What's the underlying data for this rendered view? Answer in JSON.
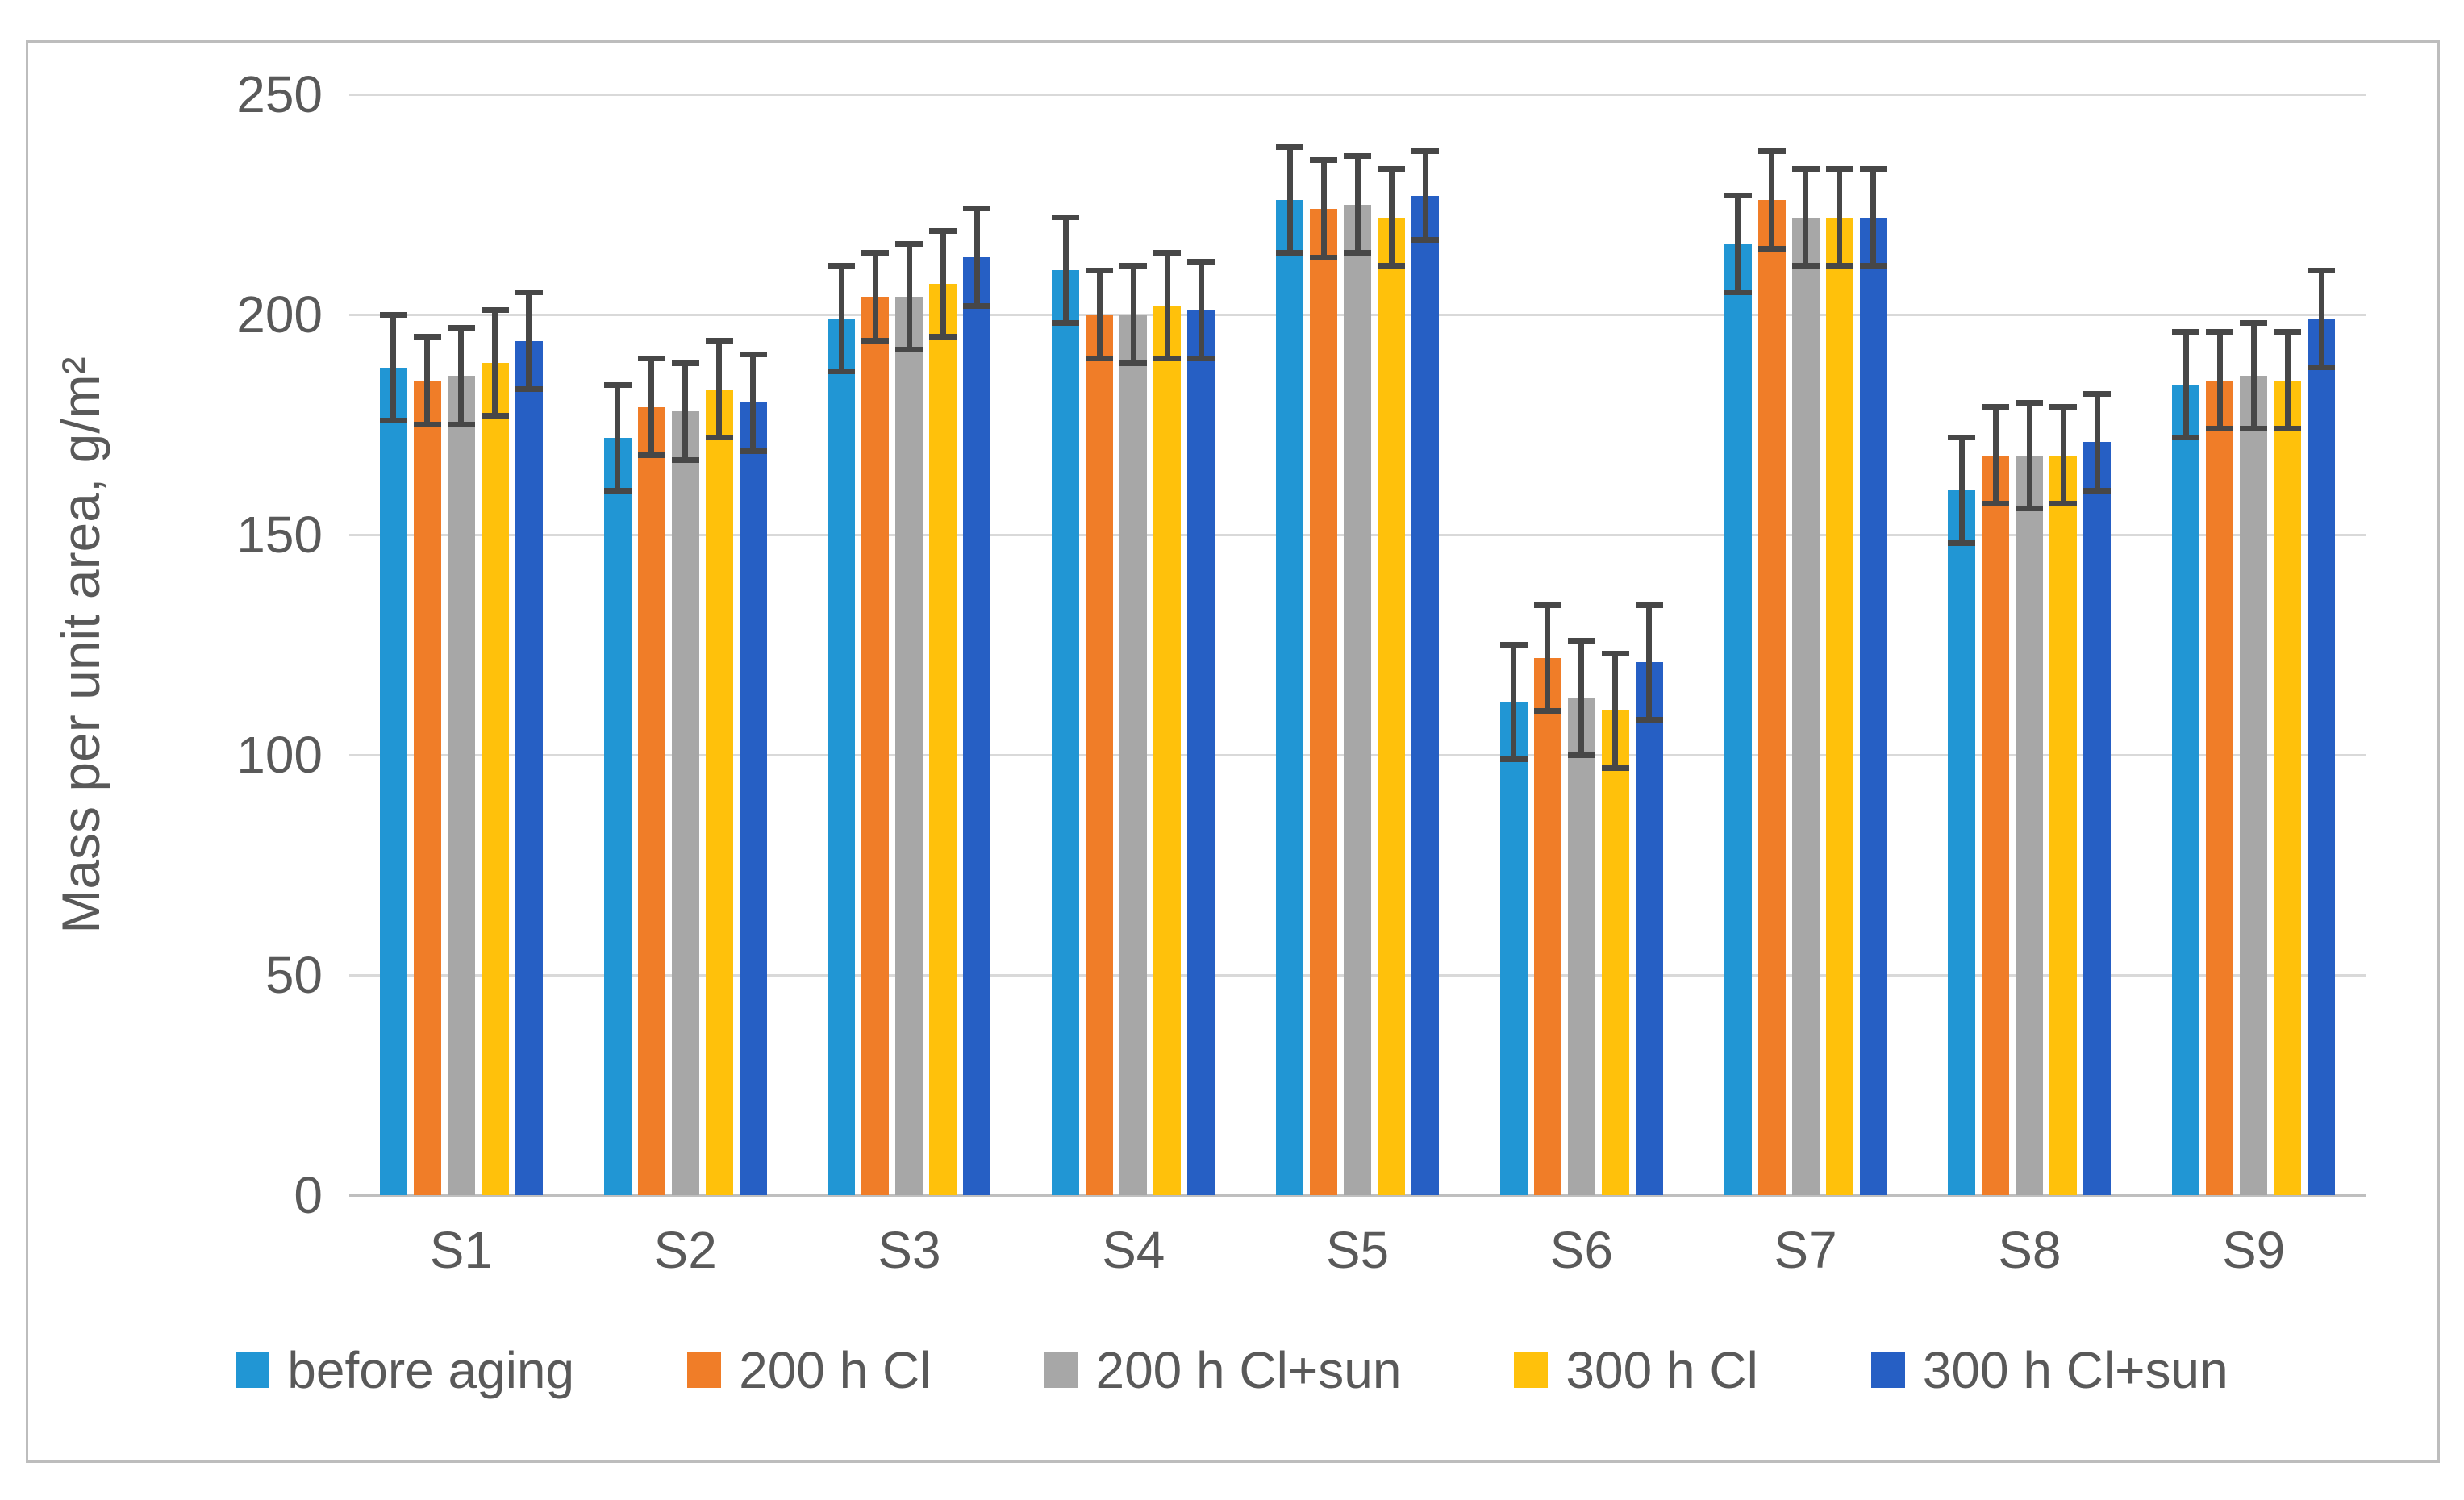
{
  "figure": {
    "background": "#ffffff",
    "border_color": "#bdbdbd"
  },
  "chart_data": {
    "type": "bar",
    "title": "",
    "xlabel": "",
    "ylabel": "Mass per unit area, g/m²",
    "ylim": [
      0,
      250
    ],
    "yticks": [
      0,
      50,
      100,
      150,
      200,
      250
    ],
    "grid": "horizontal",
    "legend_position": "bottom",
    "error_bars": true,
    "error_bar_color": "#474747",
    "gridline_color": "#d9d9d9",
    "axis_line_color": "#bfbfbf",
    "categories": [
      "S1",
      "S2",
      "S3",
      "S4",
      "S5",
      "S6",
      "S7",
      "S8",
      "S9"
    ],
    "series": [
      {
        "name": "before aging",
        "color": "#2196d4",
        "values": [
          188,
          172,
          199,
          210,
          226,
          112,
          216,
          160,
          184
        ],
        "errors": [
          12,
          12,
          12,
          12,
          12,
          13,
          11,
          12,
          12
        ]
      },
      {
        "name": "200 h Cl",
        "color": "#f07d28",
        "values": [
          185,
          179,
          204,
          200,
          224,
          122,
          226,
          168,
          185
        ],
        "errors": [
          10,
          11,
          10,
          10,
          11,
          12,
          11,
          11,
          11
        ]
      },
      {
        "name": "200 h Cl+sun",
        "color": "#a7a7a7",
        "values": [
          186,
          178,
          204,
          200,
          225,
          113,
          222,
          168,
          186
        ],
        "errors": [
          11,
          11,
          12,
          11,
          11,
          13,
          11,
          12,
          12
        ]
      },
      {
        "name": "300 h Cl",
        "color": "#ffc10b",
        "values": [
          189,
          183,
          207,
          202,
          222,
          110,
          222,
          168,
          185
        ],
        "errors": [
          12,
          11,
          12,
          12,
          11,
          13,
          11,
          11,
          11
        ]
      },
      {
        "name": "300 h Cl+sun",
        "color": "#265fc4",
        "values": [
          194,
          180,
          213,
          201,
          227,
          121,
          222,
          171,
          199
        ],
        "errors": [
          11,
          11,
          11,
          11,
          10,
          13,
          11,
          11,
          11
        ]
      }
    ]
  }
}
